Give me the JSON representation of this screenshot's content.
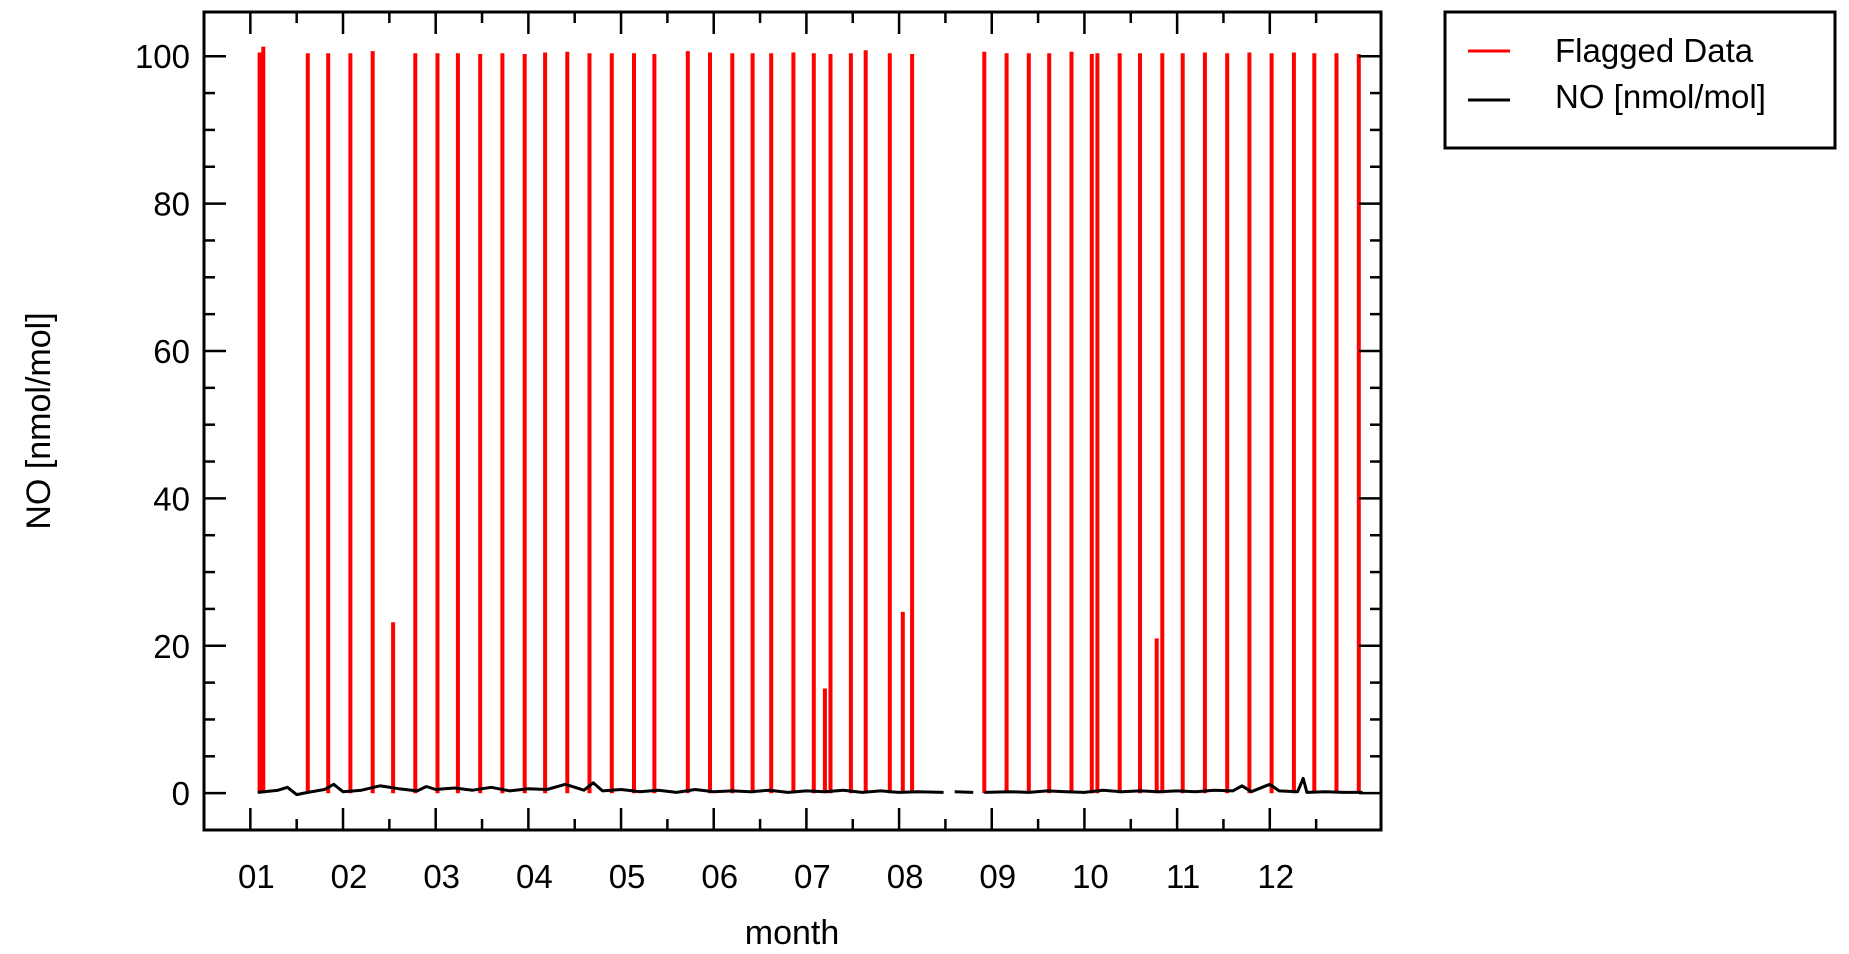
{
  "chart_data": {
    "type": "line",
    "title": "",
    "xlabel": "month",
    "ylabel": "NO [nmol/mol]",
    "xlim": [
      0.5,
      13.2
    ],
    "ylim": [
      -5,
      106
    ],
    "x_ticks": [
      "01",
      "02",
      "03",
      "04",
      "05",
      "06",
      "07",
      "08",
      "09",
      "10",
      "11",
      "12"
    ],
    "y_ticks": [
      0,
      20,
      40,
      60,
      80,
      100
    ],
    "grid": false,
    "legend": {
      "placement": "outside-top-right",
      "entries": [
        "Flagged Data",
        "NO [nmol/mol]"
      ]
    },
    "series": [
      {
        "name": "Flagged Data",
        "color": "#ff0000",
        "style": "vertical spikes",
        "spikes": [
          {
            "x": 1.1,
            "y": 100.5
          },
          {
            "x": 1.14,
            "y": 101.3
          },
          {
            "x": 1.62,
            "y": 100.4
          },
          {
            "x": 1.84,
            "y": 100.4
          },
          {
            "x": 2.08,
            "y": 100.4
          },
          {
            "x": 2.32,
            "y": 100.7
          },
          {
            "x": 2.54,
            "y": 23.2
          },
          {
            "x": 2.78,
            "y": 100.4
          },
          {
            "x": 3.02,
            "y": 100.4
          },
          {
            "x": 3.24,
            "y": 100.4
          },
          {
            "x": 3.48,
            "y": 100.3
          },
          {
            "x": 3.72,
            "y": 100.4
          },
          {
            "x": 3.96,
            "y": 100.3
          },
          {
            "x": 4.18,
            "y": 100.5
          },
          {
            "x": 4.42,
            "y": 100.6
          },
          {
            "x": 4.66,
            "y": 100.4
          },
          {
            "x": 4.9,
            "y": 100.4
          },
          {
            "x": 5.14,
            "y": 100.4
          },
          {
            "x": 5.36,
            "y": 100.3
          },
          {
            "x": 5.72,
            "y": 100.7
          },
          {
            "x": 5.96,
            "y": 100.5
          },
          {
            "x": 6.2,
            "y": 100.4
          },
          {
            "x": 6.42,
            "y": 100.4
          },
          {
            "x": 6.62,
            "y": 100.4
          },
          {
            "x": 6.86,
            "y": 100.5
          },
          {
            "x": 7.08,
            "y": 100.4
          },
          {
            "x": 7.2,
            "y": 14.2
          },
          {
            "x": 7.26,
            "y": 100.3
          },
          {
            "x": 7.48,
            "y": 100.4
          },
          {
            "x": 7.64,
            "y": 100.8
          },
          {
            "x": 7.9,
            "y": 100.4
          },
          {
            "x": 8.04,
            "y": 24.6
          },
          {
            "x": 8.14,
            "y": 100.3
          },
          {
            "x": 8.92,
            "y": 100.6
          },
          {
            "x": 9.16,
            "y": 100.4
          },
          {
            "x": 9.4,
            "y": 100.4
          },
          {
            "x": 9.62,
            "y": 100.4
          },
          {
            "x": 9.86,
            "y": 100.6
          },
          {
            "x": 10.08,
            "y": 100.3
          },
          {
            "x": 10.14,
            "y": 100.4
          },
          {
            "x": 10.38,
            "y": 100.4
          },
          {
            "x": 10.6,
            "y": 100.4
          },
          {
            "x": 10.78,
            "y": 21.0
          },
          {
            "x": 10.84,
            "y": 100.4
          },
          {
            "x": 11.06,
            "y": 100.4
          },
          {
            "x": 11.3,
            "y": 100.5
          },
          {
            "x": 11.54,
            "y": 100.4
          },
          {
            "x": 11.78,
            "y": 100.5
          },
          {
            "x": 12.02,
            "y": 100.4
          },
          {
            "x": 12.26,
            "y": 100.5
          },
          {
            "x": 12.48,
            "y": 100.4
          },
          {
            "x": 12.72,
            "y": 100.4
          },
          {
            "x": 12.96,
            "y": 100.3
          }
        ]
      },
      {
        "name": "NO [nmol/mol]",
        "color": "#000000",
        "style": "line near zero",
        "segments": [
          [
            {
              "x": 1.08,
              "y": 0.1
            },
            {
              "x": 1.3,
              "y": 0.4
            },
            {
              "x": 1.4,
              "y": 0.8
            },
            {
              "x": 1.5,
              "y": -0.2
            },
            {
              "x": 1.62,
              "y": 0.1
            },
            {
              "x": 1.8,
              "y": 0.5
            },
            {
              "x": 1.9,
              "y": 1.2
            },
            {
              "x": 2.0,
              "y": 0.2
            },
            {
              "x": 2.2,
              "y": 0.4
            },
            {
              "x": 2.4,
              "y": 1.0
            },
            {
              "x": 2.6,
              "y": 0.6
            },
            {
              "x": 2.8,
              "y": 0.3
            },
            {
              "x": 2.9,
              "y": 0.9
            },
            {
              "x": 3.0,
              "y": 0.5
            },
            {
              "x": 3.2,
              "y": 0.7
            },
            {
              "x": 3.4,
              "y": 0.4
            },
            {
              "x": 3.6,
              "y": 0.8
            },
            {
              "x": 3.8,
              "y": 0.3
            },
            {
              "x": 4.0,
              "y": 0.6
            },
            {
              "x": 4.2,
              "y": 0.5
            },
            {
              "x": 4.4,
              "y": 1.2
            },
            {
              "x": 4.6,
              "y": 0.4
            },
            {
              "x": 4.7,
              "y": 1.4
            },
            {
              "x": 4.8,
              "y": 0.3
            },
            {
              "x": 5.0,
              "y": 0.5
            },
            {
              "x": 5.2,
              "y": 0.2
            },
            {
              "x": 5.4,
              "y": 0.4
            },
            {
              "x": 5.6,
              "y": 0.1
            },
            {
              "x": 5.8,
              "y": 0.5
            },
            {
              "x": 6.0,
              "y": 0.2
            },
            {
              "x": 6.2,
              "y": 0.3
            },
            {
              "x": 6.4,
              "y": 0.2
            },
            {
              "x": 6.6,
              "y": 0.4
            },
            {
              "x": 6.8,
              "y": 0.1
            },
            {
              "x": 7.0,
              "y": 0.3
            },
            {
              "x": 7.2,
              "y": 0.2
            },
            {
              "x": 7.4,
              "y": 0.4
            },
            {
              "x": 7.6,
              "y": 0.1
            },
            {
              "x": 7.8,
              "y": 0.3
            },
            {
              "x": 8.0,
              "y": 0.1
            },
            {
              "x": 8.2,
              "y": 0.2
            },
            {
              "x": 8.48,
              "y": 0.1
            }
          ],
          [
            {
              "x": 8.6,
              "y": 0.2
            },
            {
              "x": 8.8,
              "y": 0.1
            }
          ],
          [
            {
              "x": 8.92,
              "y": 0.1
            },
            {
              "x": 9.2,
              "y": 0.2
            },
            {
              "x": 9.4,
              "y": 0.1
            },
            {
              "x": 9.6,
              "y": 0.3
            },
            {
              "x": 9.8,
              "y": 0.2
            },
            {
              "x": 10.0,
              "y": 0.1
            },
            {
              "x": 10.2,
              "y": 0.4
            },
            {
              "x": 10.4,
              "y": 0.2
            },
            {
              "x": 10.6,
              "y": 0.3
            },
            {
              "x": 10.8,
              "y": 0.2
            },
            {
              "x": 11.0,
              "y": 0.3
            },
            {
              "x": 11.2,
              "y": 0.2
            },
            {
              "x": 11.4,
              "y": 0.4
            },
            {
              "x": 11.6,
              "y": 0.3
            },
            {
              "x": 11.7,
              "y": 1.0
            },
            {
              "x": 11.8,
              "y": 0.2
            },
            {
              "x": 12.0,
              "y": 1.2
            },
            {
              "x": 12.1,
              "y": 0.3
            },
            {
              "x": 12.3,
              "y": 0.2
            },
            {
              "x": 12.36,
              "y": 2.0
            },
            {
              "x": 12.4,
              "y": 0.1
            },
            {
              "x": 12.6,
              "y": 0.2
            },
            {
              "x": 12.8,
              "y": 0.1
            },
            {
              "x": 13.0,
              "y": 0.1
            }
          ]
        ]
      }
    ]
  }
}
